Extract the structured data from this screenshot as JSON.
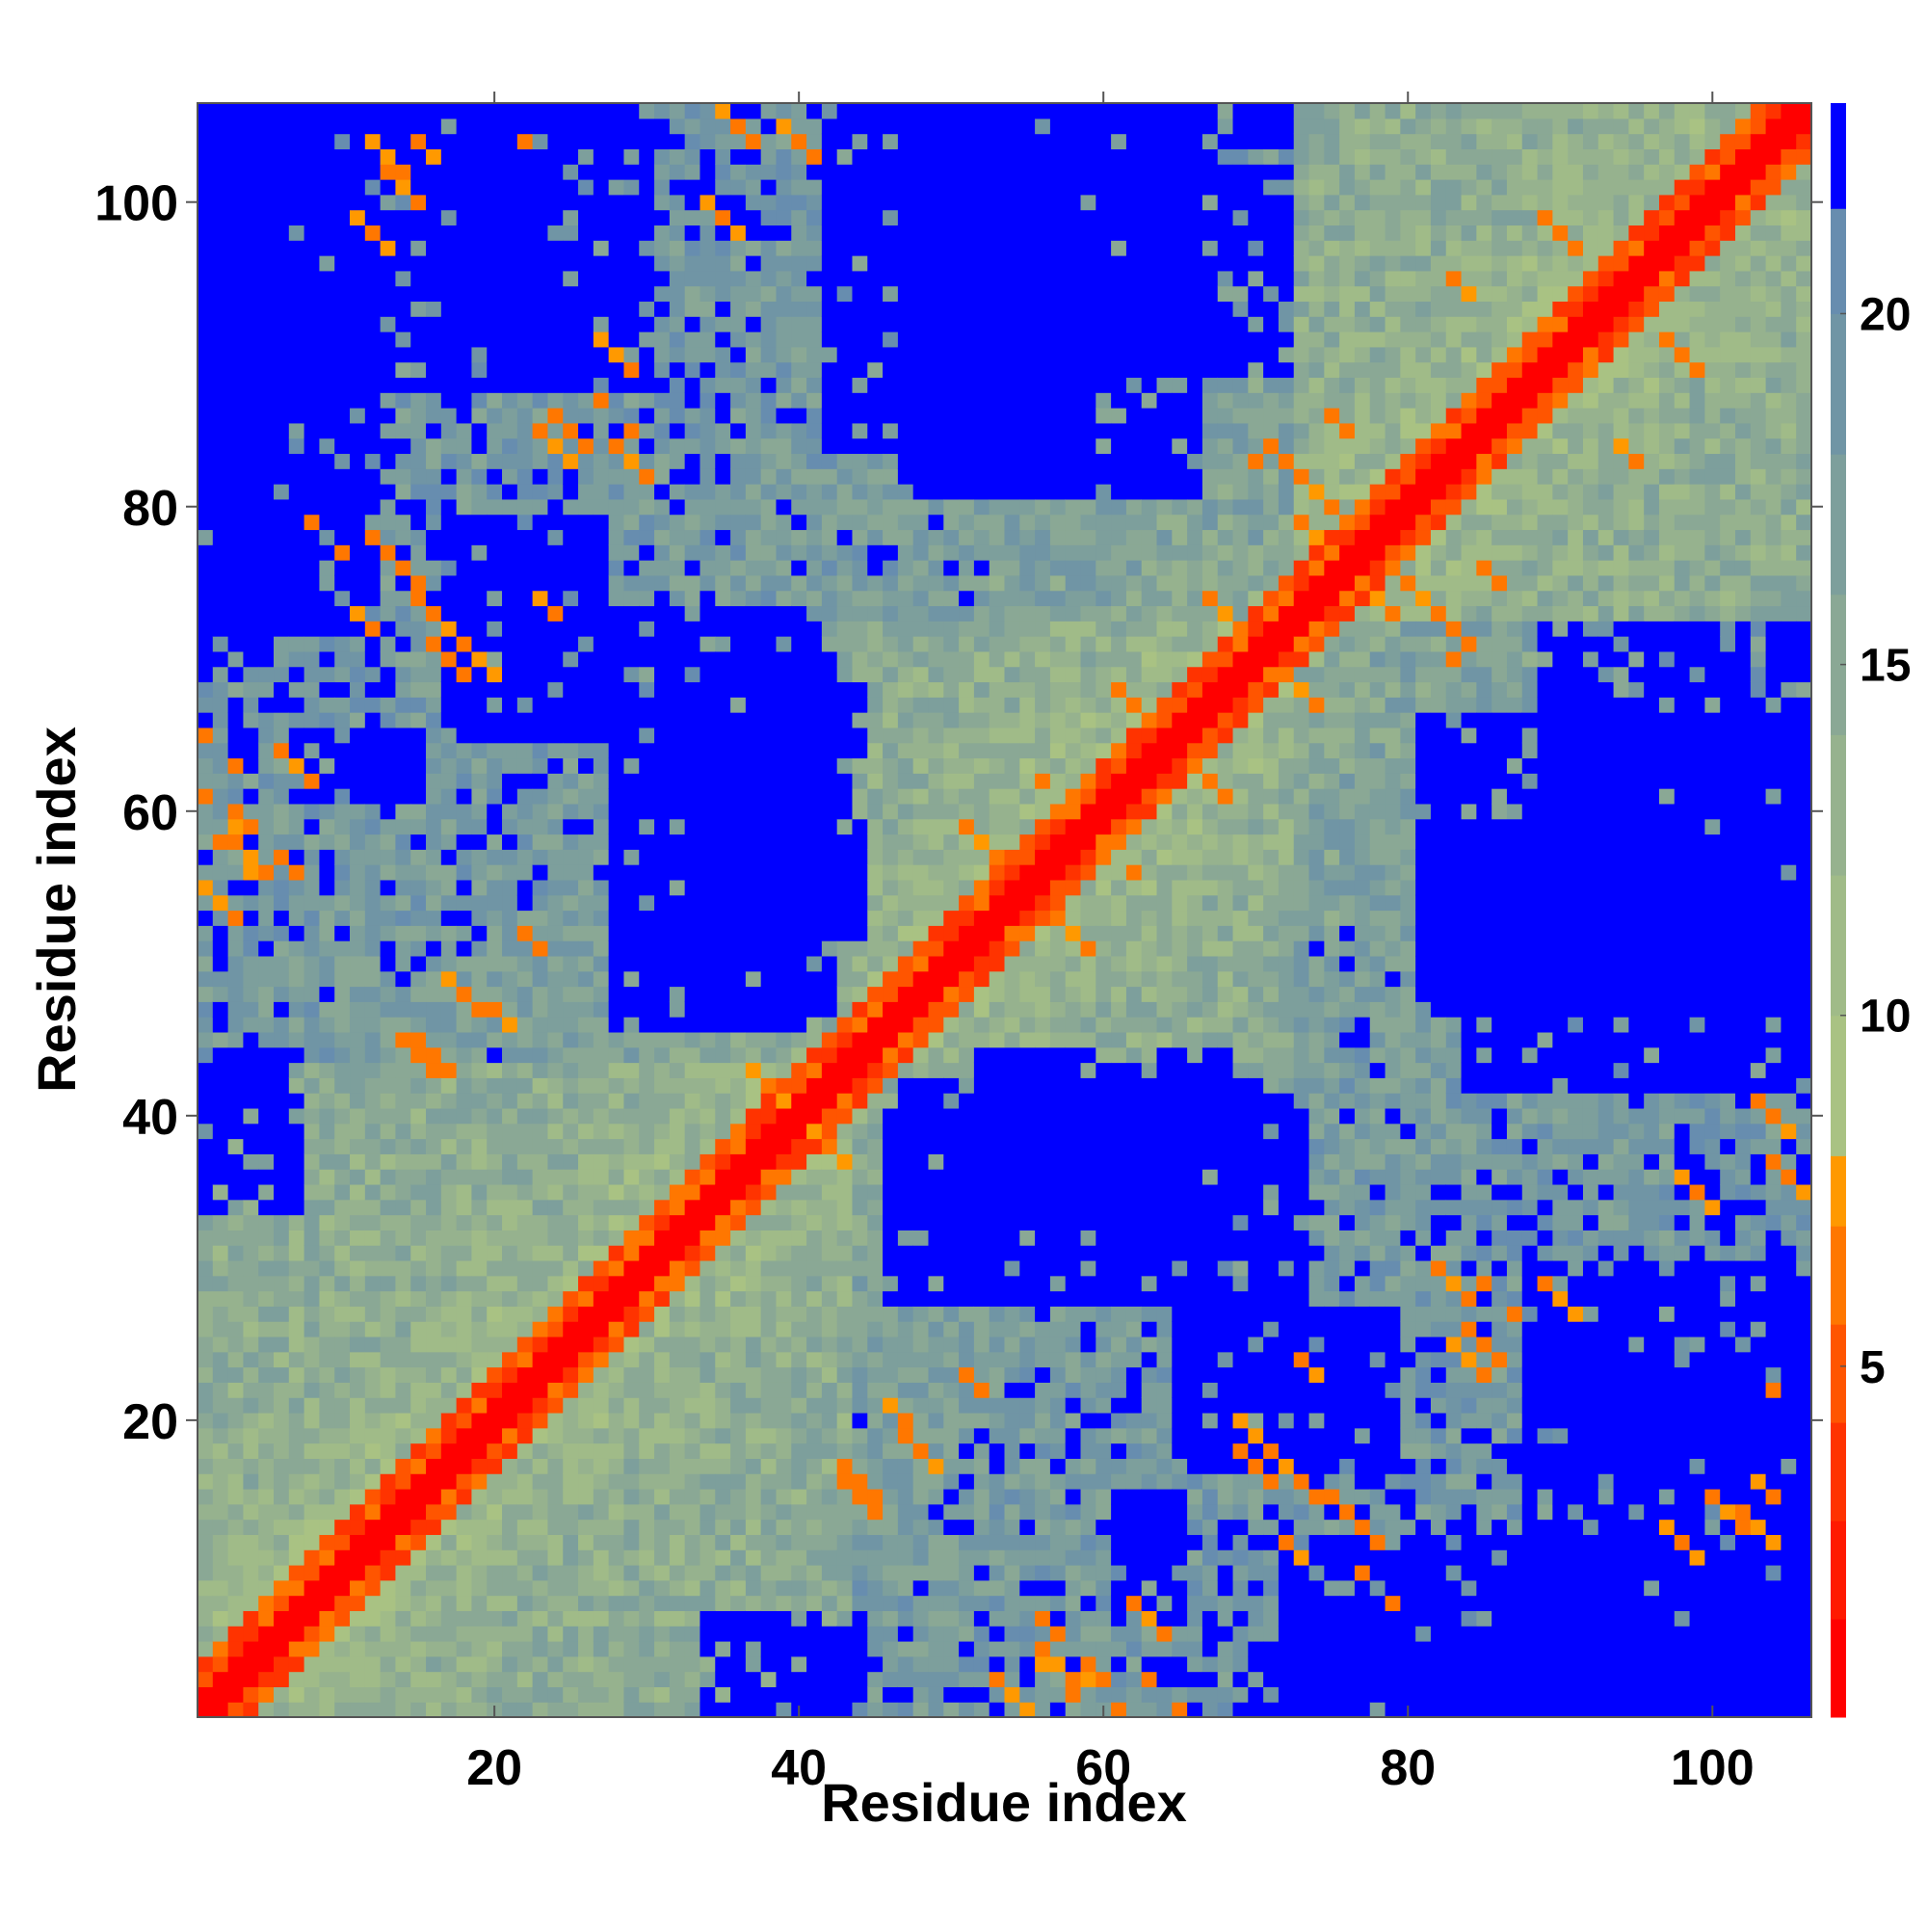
{
  "chart_data": {
    "type": "heatmap",
    "title": "",
    "xlabel": "Residue index",
    "ylabel": "Residue index",
    "n_residues": 106,
    "xlim": [
      1,
      106
    ],
    "ylim": [
      1,
      106
    ],
    "x_ticks": [
      "20",
      "40",
      "60",
      "80",
      "100"
    ],
    "y_ticks": [
      "20",
      "40",
      "60",
      "80",
      "100"
    ],
    "x_tick_values": [
      20,
      40,
      60,
      80,
      100
    ],
    "y_tick_values": [
      20,
      40,
      60,
      80,
      100
    ],
    "colorbar": {
      "ticks": [
        "5",
        "10",
        "15",
        "20"
      ],
      "tick_values": [
        5,
        10,
        15,
        20
      ],
      "range": [
        0,
        23
      ],
      "segments": [
        {
          "from": 0,
          "to": 1.4,
          "color": "#ff0000"
        },
        {
          "from": 1.4,
          "to": 2.8,
          "color": "#ff1a00"
        },
        {
          "from": 2.8,
          "to": 4.2,
          "color": "#ff3300"
        },
        {
          "from": 4.2,
          "to": 5.6,
          "color": "#ff5500"
        },
        {
          "from": 5.6,
          "to": 7.0,
          "color": "#ff7700"
        },
        {
          "from": 7.0,
          "to": 8.0,
          "color": "#ff9900"
        },
        {
          "from": 8.0,
          "to": 10.0,
          "color": "#a9c283"
        },
        {
          "from": 10.0,
          "to": 12.0,
          "color": "#a0bb88"
        },
        {
          "from": 12.0,
          "to": 14.0,
          "color": "#96b28e"
        },
        {
          "from": 14.0,
          "to": 16.0,
          "color": "#8aa895"
        },
        {
          "from": 16.0,
          "to": 18.0,
          "color": "#7d9f9c"
        },
        {
          "from": 18.0,
          "to": 20.0,
          "color": "#7095a5"
        },
        {
          "from": 20.0,
          "to": 21.5,
          "color": "#678daf"
        },
        {
          "from": 21.5,
          "to": 23.0,
          "color": "#0000ff"
        }
      ]
    },
    "value_description_note_removed": true,
    "colors": {
      "near": "#ff0000",
      "contact": "#ff8800",
      "mid_light": "#a9c283",
      "mid_dark": "#6f93aa",
      "far": "#0000ff"
    },
    "domains": [
      [
        1,
        43
      ],
      [
        44,
        72
      ],
      [
        73,
        106
      ]
    ],
    "contacts": [
      [
        13,
        77
      ],
      [
        16,
        73
      ],
      [
        19,
        70
      ],
      [
        24,
        73
      ],
      [
        14,
        101
      ],
      [
        16,
        103
      ],
      [
        18,
        48
      ],
      [
        15,
        44
      ],
      [
        36,
        105
      ],
      [
        25,
        85
      ],
      [
        29,
        83
      ],
      [
        38,
        42
      ],
      [
        42,
        38
      ],
      [
        52,
        58
      ],
      [
        62,
        67
      ],
      [
        56,
        62
      ],
      [
        75,
        80
      ],
      [
        72,
        83
      ],
      [
        78,
        74
      ],
      [
        82,
        71
      ],
      [
        86,
        75
      ],
      [
        47,
        20
      ],
      [
        44,
        16
      ],
      [
        52,
        22
      ],
      [
        57,
        3
      ],
      [
        60,
        2
      ],
      [
        64,
        2
      ],
      [
        72,
        12
      ],
      [
        70,
        17
      ],
      [
        76,
        14
      ],
      [
        78,
        9
      ],
      [
        84,
        24
      ],
      [
        86,
        28
      ],
      [
        104,
        40
      ],
      [
        103,
        13
      ],
      [
        90,
        82
      ],
      [
        94,
        84
      ],
      [
        98,
        90
      ],
      [
        102,
        98
      ],
      [
        3,
        60
      ],
      [
        4,
        57
      ],
      [
        2,
        54
      ],
      [
        7,
        63
      ],
      [
        6,
        57
      ],
      [
        22,
        104
      ],
      [
        12,
        98
      ],
      [
        28,
        90
      ],
      [
        35,
        99
      ],
      [
        68,
        73
      ],
      [
        73,
        68
      ]
    ],
    "far_blocks": [
      [
        [
          1,
          8
        ],
        [
          86,
          106
        ]
      ],
      [
        [
          86,
          106
        ],
        [
          1,
          8
        ]
      ],
      [
        [
          17,
          27
        ],
        [
          65,
          79
        ]
      ],
      [
        [
          28,
          40
        ],
        [
          46,
          73
        ]
      ],
      [
        [
          34,
          44
        ],
        [
          52,
          68
        ]
      ],
      [
        [
          47,
          70
        ],
        [
          33,
          42
        ]
      ],
      [
        [
          52,
          70
        ],
        [
          36,
          42
        ]
      ],
      [
        [
          48,
          58
        ],
        [
          81,
          106
        ]
      ],
      [
        [
          81,
          106
        ],
        [
          47,
          66
        ]
      ],
      [
        [
          88,
          106
        ],
        [
          17,
          30
        ]
      ],
      [
        [
          72,
          106
        ],
        [
          1,
          12
        ]
      ],
      [
        [
          1,
          7
        ],
        [
          34,
          44
        ]
      ],
      [
        [
          7,
          15
        ],
        [
          61,
          65
        ]
      ],
      [
        [
          88,
          106
        ],
        [
          8,
          22
        ]
      ],
      [
        [
          42,
          52
        ],
        [
          84,
          106
        ]
      ],
      [
        [
          50,
          72
        ],
        [
          89,
          106
        ]
      ],
      [
        [
          1,
          5
        ],
        [
          70,
          106
        ]
      ]
    ]
  }
}
